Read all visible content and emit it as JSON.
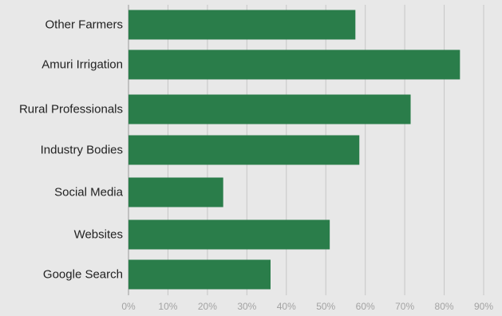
{
  "chart_data": {
    "type": "bar",
    "orientation": "horizontal",
    "categories": [
      "Other Farmers",
      "Amuri Irrigation",
      "Rural Professionals",
      "Industry Bodies",
      "Social Media",
      "Websites",
      "Google Search"
    ],
    "values": [
      57.5,
      84,
      71.5,
      58.5,
      24,
      51,
      36
    ],
    "value_unit": "%",
    "xlim": [
      0,
      90
    ],
    "xticks": [
      "0%",
      "10%",
      "20%",
      "30%",
      "40%",
      "50%",
      "60%",
      "70%",
      "80%",
      "90%"
    ],
    "grid": true,
    "legend": "none",
    "title": "",
    "xlabel": "",
    "ylabel": ""
  },
  "colors": {
    "background": "#e8e8e8",
    "bar": "#2a7d4a",
    "gridline": "#c6c6c6",
    "category_text": "#222222",
    "tick_text": "#a3a3a3"
  }
}
